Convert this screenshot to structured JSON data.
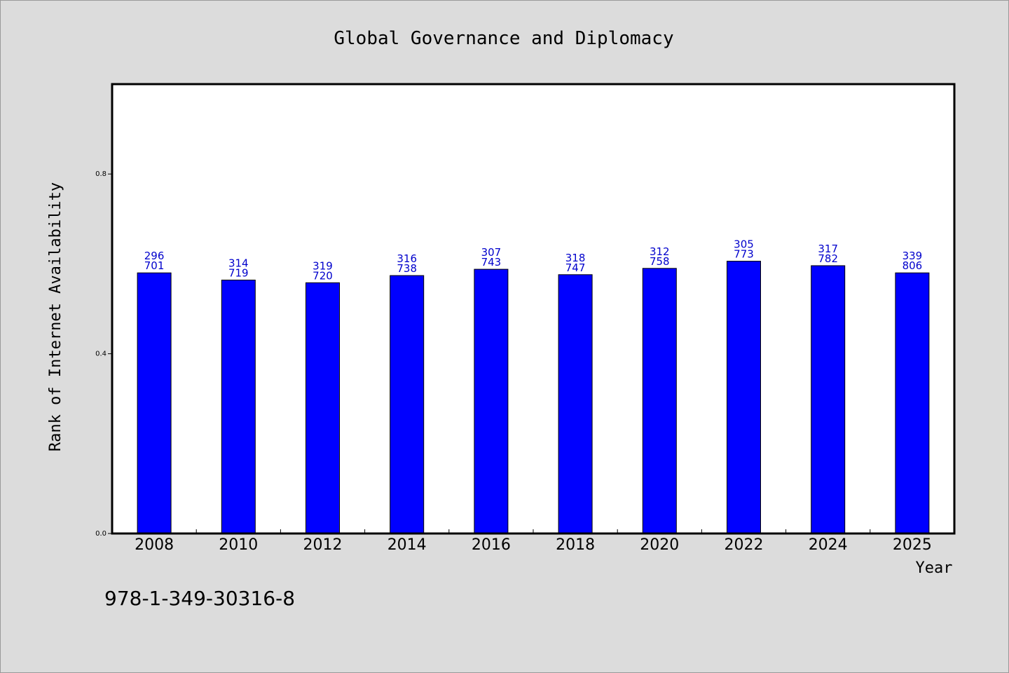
{
  "chart_data": {
    "type": "bar",
    "title": "Global Governance and Diplomacy",
    "xlabel": "Year",
    "ylabel": "Rank of Internet Availability",
    "categories": [
      "2008",
      "2010",
      "2012",
      "2014",
      "2016",
      "2018",
      "2020",
      "2022",
      "2024",
      "2025"
    ],
    "series": [
      {
        "values": [
          0.58,
          0.564,
          0.558,
          0.574,
          0.588,
          0.576,
          0.59,
          0.606,
          0.596,
          0.58
        ],
        "labels_top": [
          "296",
          "314",
          "319",
          "316",
          "307",
          "318",
          "312",
          "305",
          "317",
          "339"
        ],
        "labels_bottom": [
          "701",
          "719",
          "720",
          "738",
          "743",
          "747",
          "758",
          "773",
          "782",
          "806"
        ],
        "color": "#0000ff"
      }
    ],
    "ylim": [
      0.0,
      1.0
    ],
    "yticks": [
      0.0,
      0.4,
      0.8
    ],
    "ytick_labels": [
      "0.0",
      "0.4",
      "0.8"
    ],
    "grid": false,
    "legend": "none"
  },
  "footer": {
    "isbn": "978-1-349-30316-8"
  },
  "colors": {
    "background": "#dcdcdc",
    "plot_background": "#ffffff",
    "bar": "#0000ff",
    "label": "#0000cc"
  }
}
